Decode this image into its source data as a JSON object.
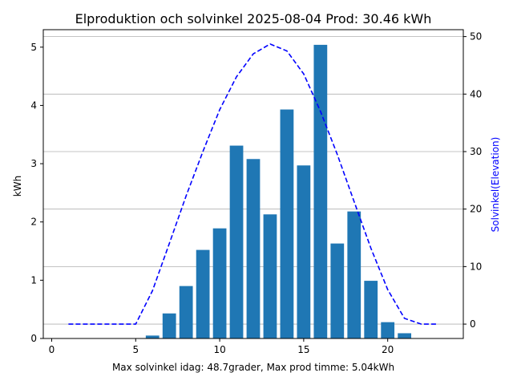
{
  "chart_data": {
    "type": "bar",
    "title": "Elproduktion och solvinkel 2025-08-04 Prod: 30.46 kWh",
    "xlabel": "Max solvinkel idag: 48.7grader, Max prod timme: 5.04kWh",
    "ylabel": "kWh",
    "y2label": "Solvinkel(Elevation)",
    "xlim": [
      -0.5,
      24.5
    ],
    "ylim": [
      0,
      5.3
    ],
    "y2lim": [
      -2.5,
      51.2
    ],
    "xticks": [
      0,
      5,
      10,
      15,
      20
    ],
    "yticks": [
      0,
      1,
      2,
      3,
      4,
      5
    ],
    "y2ticks": [
      0,
      10,
      20,
      30,
      40,
      50
    ],
    "grid": "horizontal-right-axis",
    "colors": {
      "bars": "#1f77b4",
      "line": "#0000ff"
    },
    "series": [
      {
        "type": "bar",
        "axis": "left",
        "x": [
          6,
          7,
          8,
          9,
          10,
          11,
          12,
          13,
          14,
          15,
          16,
          17,
          18,
          19,
          20,
          21
        ],
        "values": [
          0.05,
          0.43,
          0.9,
          1.52,
          1.89,
          3.31,
          3.08,
          2.13,
          3.93,
          2.97,
          5.04,
          1.63,
          2.18,
          0.99,
          0.28,
          0.09
        ]
      },
      {
        "type": "line",
        "axis": "right",
        "style": "dashed",
        "x": [
          1,
          2,
          3,
          4,
          5,
          6,
          7,
          8,
          9,
          10,
          11,
          12,
          13,
          14,
          15,
          16,
          17,
          18,
          19,
          20,
          21,
          22,
          23
        ],
        "values": [
          0,
          0,
          0,
          0,
          0,
          5.8,
          14.0,
          22.3,
          30.0,
          37.3,
          43.0,
          47.0,
          48.7,
          47.5,
          43.5,
          37.0,
          29.5,
          21.3,
          13.2,
          6.0,
          1.0,
          0,
          0
        ]
      }
    ]
  }
}
